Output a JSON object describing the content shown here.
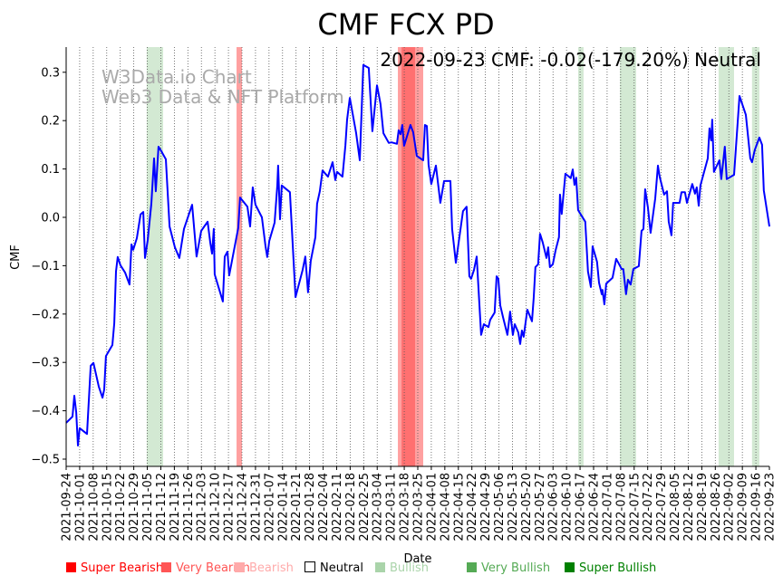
{
  "chart_data": {
    "type": "line",
    "title": "CMF FCX PD",
    "annotation": "2022-09-23 CMF: -0.02(-179.20%) Neutral",
    "watermark": [
      "W3Data.io Chart",
      "Web3 Data & NFT Platform"
    ],
    "xlabel": "Date",
    "ylabel": "CMF",
    "start_date": "2021-09-24",
    "x_unit": "days since start_date",
    "xlim": [
      0,
      364
    ],
    "ylim": [
      -0.51,
      0.355
    ],
    "yticks": [
      0.3,
      0.2,
      0.1,
      0.0,
      -0.1,
      -0.2,
      -0.3,
      -0.4,
      -0.5
    ],
    "ytick_labels": [
      "0.3",
      "0.2",
      "0.1",
      "0.0",
      "−0.1",
      "−0.2",
      "−0.3",
      "−0.4",
      "−0.5"
    ],
    "xtick_labels": [
      "2021-09-24",
      "2021-10-01",
      "2021-10-08",
      "2021-10-15",
      "2021-10-22",
      "2021-10-29",
      "2021-11-05",
      "2021-11-12",
      "2021-11-19",
      "2021-11-26",
      "2021-12-03",
      "2021-12-10",
      "2021-12-17",
      "2021-12-24",
      "2021-12-31",
      "2022-01-07",
      "2022-01-14",
      "2022-01-21",
      "2022-01-28",
      "2022-02-04",
      "2022-02-11",
      "2022-02-18",
      "2022-02-25",
      "2022-03-04",
      "2022-03-11",
      "2022-03-18",
      "2022-03-25",
      "2022-04-01",
      "2022-04-08",
      "2022-04-15",
      "2022-04-22",
      "2022-04-29",
      "2022-05-06",
      "2022-05-13",
      "2022-05-20",
      "2022-05-27",
      "2022-06-03",
      "2022-06-10",
      "2022-06-17",
      "2022-06-24",
      "2022-07-01",
      "2022-07-08",
      "2022-07-15",
      "2022-07-22",
      "2022-07-29",
      "2022-08-05",
      "2022-08-12",
      "2022-08-19",
      "2022-08-26",
      "2022-09-02",
      "2022-09-09",
      "2022-09-16",
      "2022-09-23"
    ],
    "grid": "vertical dotted",
    "series": [
      {
        "name": "CMF",
        "color": "#0000ff",
        "points": [
          [
            0,
            -0.425
          ],
          [
            3.3,
            -0.412
          ],
          [
            4.2,
            -0.369
          ],
          [
            5.2,
            -0.403
          ],
          [
            6.1,
            -0.472
          ],
          [
            7,
            -0.436
          ],
          [
            10.8,
            -0.448
          ],
          [
            12.7,
            -0.307
          ],
          [
            14.1,
            -0.301
          ],
          [
            16.9,
            -0.35
          ],
          [
            18.8,
            -0.373
          ],
          [
            19.7,
            -0.356
          ],
          [
            20.6,
            -0.287
          ],
          [
            23.9,
            -0.264
          ],
          [
            24.9,
            -0.219
          ],
          [
            25.8,
            -0.112
          ],
          [
            26.7,
            -0.082
          ],
          [
            28.1,
            -0.099
          ],
          [
            30.5,
            -0.114
          ],
          [
            32.8,
            -0.139
          ],
          [
            33.8,
            -0.056
          ],
          [
            34.7,
            -0.067
          ],
          [
            36.6,
            -0.043
          ],
          [
            38.5,
            0.006
          ],
          [
            39.9,
            0.011
          ],
          [
            40.8,
            -0.084
          ],
          [
            42.2,
            -0.047
          ],
          [
            44.1,
            0.028
          ],
          [
            45.5,
            0.122
          ],
          [
            46.4,
            0.054
          ],
          [
            47.8,
            0.146
          ],
          [
            49.2,
            0.137
          ],
          [
            51.6,
            0.12
          ],
          [
            53.5,
            -0.019
          ],
          [
            56.3,
            -0.062
          ],
          [
            58.6,
            -0.084
          ],
          [
            61,
            -0.024
          ],
          [
            65.2,
            0.026
          ],
          [
            67.5,
            -0.081
          ],
          [
            69.9,
            -0.028
          ],
          [
            73.2,
            -0.009
          ],
          [
            74.6,
            -0.052
          ],
          [
            75.5,
            -0.075
          ],
          [
            76.4,
            -0.024
          ],
          [
            76.9,
            -0.118
          ],
          [
            81.1,
            -0.174
          ],
          [
            82.1,
            -0.081
          ],
          [
            83.5,
            -0.071
          ],
          [
            84.4,
            -0.12
          ],
          [
            89.1,
            -0.022
          ],
          [
            90,
            0.041
          ],
          [
            93.8,
            0.022
          ],
          [
            95.2,
            -0.019
          ],
          [
            96.6,
            0.062
          ],
          [
            98,
            0.026
          ],
          [
            101.3,
            0
          ],
          [
            103.2,
            -0.06
          ],
          [
            104.1,
            -0.082
          ],
          [
            105.1,
            -0.049
          ],
          [
            107.9,
            -0.011
          ],
          [
            109.3,
            0.066
          ],
          [
            109.7,
            0.107
          ],
          [
            110.7,
            -0.004
          ],
          [
            111.6,
            0.066
          ],
          [
            115.8,
            0.052
          ],
          [
            118.7,
            -0.165
          ],
          [
            122.4,
            -0.109
          ],
          [
            123.8,
            -0.081
          ],
          [
            125.2,
            -0.155
          ],
          [
            126.6,
            -0.09
          ],
          [
            129,
            -0.041
          ],
          [
            129.9,
            0.028
          ],
          [
            131.3,
            0.054
          ],
          [
            132.7,
            0.097
          ],
          [
            135.5,
            0.084
          ],
          [
            137.9,
            0.114
          ],
          [
            139.3,
            0.077
          ],
          [
            140.2,
            0.094
          ],
          [
            143,
            0.084
          ],
          [
            144.5,
            0.148
          ],
          [
            145.4,
            0.202
          ],
          [
            146.8,
            0.247
          ],
          [
            150.1,
            0.174
          ],
          [
            152,
            0.118
          ],
          [
            153.8,
            0.315
          ],
          [
            156.6,
            0.309
          ],
          [
            158.5,
            0.178
          ],
          [
            160.9,
            0.273
          ],
          [
            162.7,
            0.234
          ],
          [
            164.2,
            0.174
          ],
          [
            167,
            0.154
          ],
          [
            168.4,
            0.155
          ],
          [
            171.2,
            0.152
          ],
          [
            172.1,
            0.18
          ],
          [
            173.1,
            0.172
          ],
          [
            174,
            0.191
          ],
          [
            174.9,
            0.148
          ],
          [
            178.2,
            0.191
          ],
          [
            179.6,
            0.176
          ],
          [
            181.5,
            0.127
          ],
          [
            184.8,
            0.118
          ],
          [
            185.7,
            0.191
          ],
          [
            186.7,
            0.189
          ],
          [
            187.6,
            0.109
          ],
          [
            189,
            0.069
          ],
          [
            191.4,
            0.107
          ],
          [
            193.7,
            0.03
          ],
          [
            195.6,
            0.075
          ],
          [
            198.9,
            0.075
          ],
          [
            199.8,
            -0.024
          ],
          [
            201.7,
            -0.094
          ],
          [
            205.4,
            0.013
          ],
          [
            207.3,
            0.022
          ],
          [
            208.7,
            -0.122
          ],
          [
            209.6,
            -0.127
          ],
          [
            211.1,
            -0.109
          ],
          [
            212.5,
            -0.081
          ],
          [
            214.8,
            -0.243
          ],
          [
            216.2,
            -0.221
          ],
          [
            218.6,
            -0.227
          ],
          [
            219.5,
            -0.212
          ],
          [
            221.8,
            -0.197
          ],
          [
            222.8,
            -0.122
          ],
          [
            223.7,
            -0.127
          ],
          [
            224.7,
            -0.182
          ],
          [
            226.1,
            -0.206
          ],
          [
            228.4,
            -0.243
          ],
          [
            229.8,
            -0.195
          ],
          [
            231.2,
            -0.243
          ],
          [
            232.2,
            -0.221
          ],
          [
            234,
            -0.238
          ],
          [
            235,
            -0.262
          ],
          [
            235.9,
            -0.234
          ],
          [
            236.8,
            -0.247
          ],
          [
            238.7,
            -0.191
          ],
          [
            241.1,
            -0.215
          ],
          [
            242,
            -0.167
          ],
          [
            242.9,
            -0.103
          ],
          [
            244.3,
            -0.097
          ],
          [
            245.3,
            -0.034
          ],
          [
            246.7,
            -0.052
          ],
          [
            248.6,
            -0.084
          ],
          [
            249.5,
            -0.062
          ],
          [
            250.4,
            -0.103
          ],
          [
            251.9,
            -0.097
          ],
          [
            253.3,
            -0.069
          ],
          [
            255.1,
            -0.041
          ],
          [
            255.6,
            0.047
          ],
          [
            256.5,
            0.007
          ],
          [
            258.4,
            0.09
          ],
          [
            261.2,
            0.081
          ],
          [
            262.2,
            0.099
          ],
          [
            263.1,
            0.067
          ],
          [
            264,
            0.082
          ],
          [
            265,
            0.015
          ],
          [
            268.7,
            -0.009
          ],
          [
            270.1,
            -0.112
          ],
          [
            271.6,
            -0.144
          ],
          [
            272.5,
            -0.06
          ],
          [
            274.8,
            -0.092
          ],
          [
            275.8,
            -0.135
          ],
          [
            277.2,
            -0.159
          ],
          [
            277.6,
            -0.15
          ],
          [
            278.6,
            -0.18
          ],
          [
            279.5,
            -0.137
          ],
          [
            282.8,
            -0.125
          ],
          [
            284.7,
            -0.086
          ],
          [
            286.1,
            -0.096
          ],
          [
            287.5,
            -0.107
          ],
          [
            288.4,
            -0.107
          ],
          [
            289.8,
            -0.159
          ],
          [
            290.8,
            -0.129
          ],
          [
            292.2,
            -0.139
          ],
          [
            293.6,
            -0.107
          ],
          [
            296.4,
            -0.101
          ],
          [
            297.8,
            -0.028
          ],
          [
            298.8,
            -0.024
          ],
          [
            299.7,
            0.058
          ],
          [
            301.1,
            0.021
          ],
          [
            302.5,
            -0.032
          ],
          [
            304.9,
            0.039
          ],
          [
            306.3,
            0.107
          ],
          [
            307.2,
            0.084
          ],
          [
            309.5,
            0.047
          ],
          [
            311,
            0.054
          ],
          [
            311.9,
            -0.009
          ],
          [
            313.3,
            -0.037
          ],
          [
            314.2,
            0.03
          ],
          [
            317.5,
            0.03
          ],
          [
            318.5,
            0.052
          ],
          [
            320.3,
            0.052
          ],
          [
            321.3,
            0.03
          ],
          [
            324.1,
            0.069
          ],
          [
            325.5,
            0.049
          ],
          [
            326.4,
            0.062
          ],
          [
            327.4,
            0.024
          ],
          [
            328.3,
            0.066
          ],
          [
            329.2,
            0.079
          ],
          [
            332.1,
            0.122
          ],
          [
            333,
            0.184
          ],
          [
            333.9,
            0.159
          ],
          [
            334.4,
            0.202
          ],
          [
            335.3,
            0.094
          ],
          [
            338.1,
            0.118
          ],
          [
            339.1,
            0.079
          ],
          [
            340.9,
            0.146
          ],
          [
            341.9,
            0.079
          ],
          [
            345.7,
            0.088
          ],
          [
            348.5,
            0.251
          ],
          [
            351.8,
            0.212
          ],
          [
            354.1,
            0.122
          ],
          [
            355,
            0.114
          ],
          [
            356.4,
            0.139
          ],
          [
            358.8,
            0.165
          ],
          [
            360.2,
            0.15
          ],
          [
            361.1,
            0.056
          ],
          [
            364,
            -0.019
          ]
        ]
      }
    ],
    "bands": [
      {
        "category": "Bullish",
        "from": 41.7,
        "to": 50.2
      },
      {
        "category": "Bearish",
        "from": 88.2,
        "to": 91
      },
      {
        "category": "Bearish",
        "from": 171.7,
        "to": 184.8
      },
      {
        "category": "Very Bearish",
        "from": 173.6,
        "to": 180.6
      },
      {
        "category": "Bullish",
        "from": 265,
        "to": 267.8
      },
      {
        "category": "Bullish",
        "from": 286.6,
        "to": 295
      },
      {
        "category": "Bullish",
        "from": 337.7,
        "to": 345.7
      },
      {
        "category": "Bullish",
        "from": 355,
        "to": 358.8
      }
    ],
    "legend": {
      "placement": "bottom",
      "items": [
        {
          "label": "Super Bearish",
          "color": "#ff0000",
          "text_color": "#ff0000"
        },
        {
          "label": "Very Bearish",
          "color": "#ff5555",
          "text_color": "#ff5555"
        },
        {
          "label": "Bearish",
          "color": "#ffaaaa",
          "text_color": "#ffaaaa"
        },
        {
          "label": "Neutral",
          "color": "#ffffff",
          "text_color": "#000000"
        },
        {
          "label": "Bullish",
          "color": "#aad4aa",
          "text_color": "#aad4aa"
        },
        {
          "label": "Very Bullish",
          "color": "#55aa55",
          "text_color": "#55aa55"
        },
        {
          "label": "Super Bullish",
          "color": "#008000",
          "text_color": "#008000"
        }
      ]
    },
    "band_colors": {
      "Bullish": "#d3e9d3",
      "Bearish": "#ffa0a0",
      "Very Bearish": "#ff7070"
    }
  }
}
